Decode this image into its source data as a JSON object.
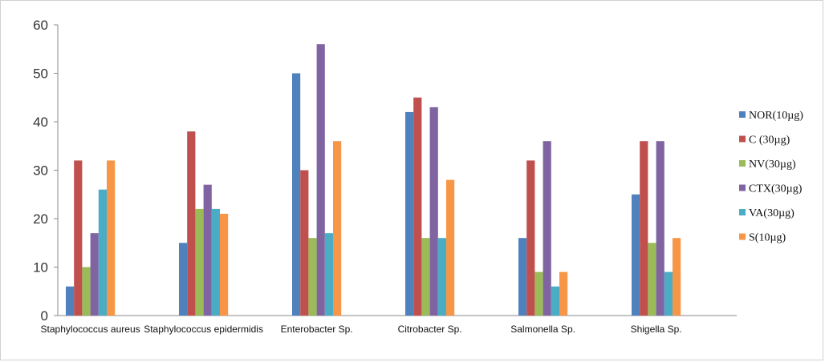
{
  "chart_data": {
    "type": "bar",
    "title": "",
    "xlabel": "",
    "ylabel": "",
    "ylim": [
      0,
      60
    ],
    "yticks": [
      0,
      10,
      20,
      30,
      40,
      50,
      60
    ],
    "grid": false,
    "legend_position": "right",
    "categories": [
      "Staphylococcus aureus",
      "Staphylococcus epidermidis",
      "Enterobacter Sp.",
      "Citrobacter Sp.",
      "Salmonella Sp.",
      "Shigella Sp."
    ],
    "series": [
      {
        "name": "NOR(10µg)",
        "color": "#4f81bd",
        "values": [
          6,
          15,
          50,
          42,
          16,
          25
        ]
      },
      {
        "name": "C (30µg)",
        "color": "#c0504d",
        "values": [
          32,
          38,
          30,
          45,
          32,
          36
        ]
      },
      {
        "name": "NV(30µg)",
        "color": "#9bbb59",
        "values": [
          10,
          22,
          16,
          16,
          9,
          15
        ]
      },
      {
        "name": "CTX(30µg)",
        "color": "#8064a2",
        "values": [
          17,
          27,
          56,
          43,
          36,
          36
        ]
      },
      {
        "name": "VA(30µg)",
        "color": "#4bacc6",
        "values": [
          26,
          22,
          17,
          16,
          6,
          9
        ]
      },
      {
        "name": "S(10µg)",
        "color": "#f79646",
        "values": [
          32,
          21,
          36,
          28,
          9,
          16
        ]
      }
    ]
  }
}
